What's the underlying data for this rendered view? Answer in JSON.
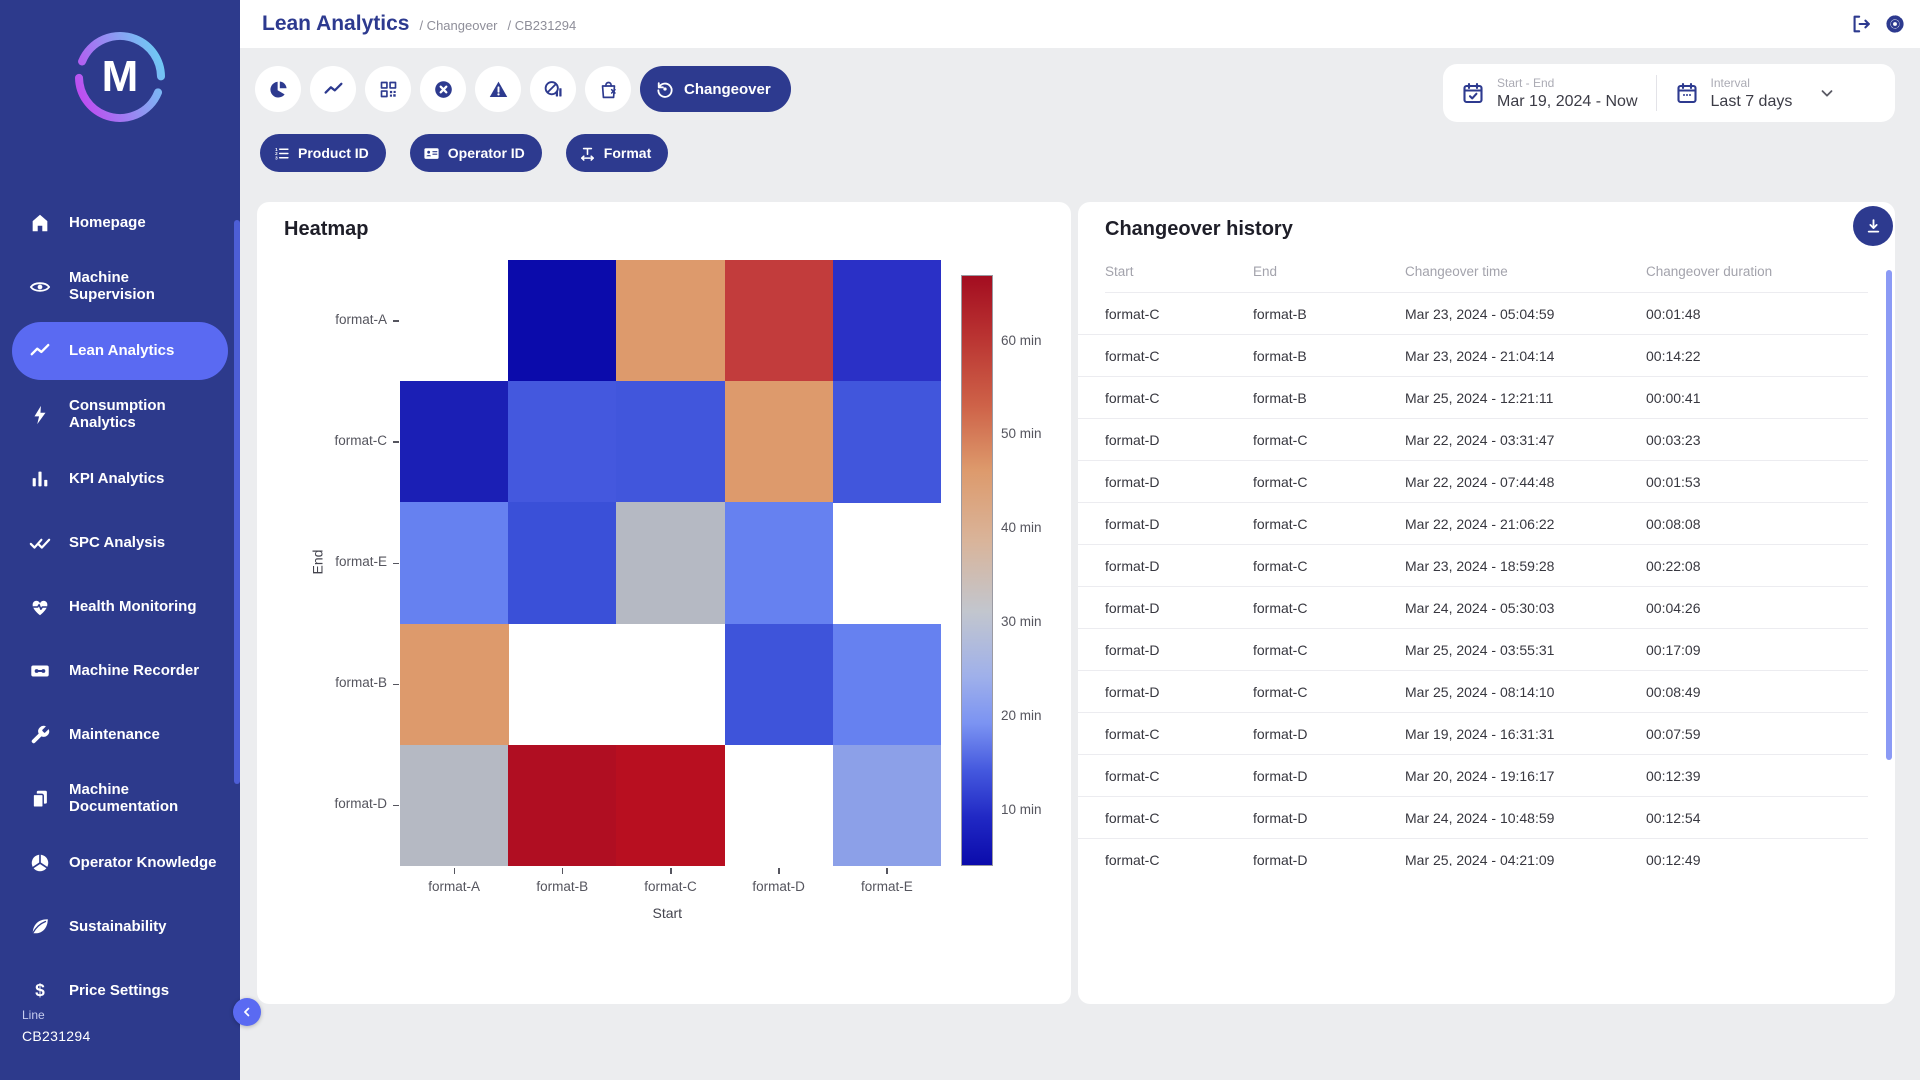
{
  "header": {
    "title": "Lean Analytics",
    "breadcrumbs": [
      "/ Changeover",
      "/ CB231294"
    ],
    "icons": [
      {
        "name": "logout-icon"
      },
      {
        "name": "gear-icon"
      }
    ]
  },
  "sidebar": {
    "logo_letter": "M",
    "logo_gradient": [
      "#64DBF5",
      "#C93BF0"
    ],
    "items": [
      {
        "label": "Homepage",
        "icon": "home-icon",
        "active": false
      },
      {
        "label": "Machine Supervision",
        "icon": "eye-icon",
        "active": false
      },
      {
        "label": "Lean Analytics",
        "icon": "trend-icon",
        "active": true
      },
      {
        "label": "Consumption Analytics",
        "icon": "bolt-icon",
        "active": false
      },
      {
        "label": "KPI Analytics",
        "icon": "bar-chart-icon",
        "active": false
      },
      {
        "label": "SPC Analysis",
        "icon": "double-check-icon",
        "active": false
      },
      {
        "label": "Health Monitoring",
        "icon": "heart-pulse-icon",
        "active": false
      },
      {
        "label": "Machine Recorder",
        "icon": "cassette-icon",
        "active": false
      },
      {
        "label": "Maintenance",
        "icon": "wrench-icon",
        "active": false
      },
      {
        "label": "Machine Documentation",
        "icon": "documents-icon",
        "active": false
      },
      {
        "label": "Operator Knowledge",
        "icon": "segments-icon",
        "active": false
      },
      {
        "label": "Sustainability",
        "icon": "leaf-icon",
        "active": false
      },
      {
        "label": "Price Settings",
        "icon": "dollar-icon",
        "active": false
      }
    ],
    "line_label": "Line",
    "line_value": "CB231294",
    "collapse_icon": "chevron-left-icon"
  },
  "toolbar": {
    "buttons": [
      {
        "name": "pie-chart-button",
        "icon": "pie-chart-icon"
      },
      {
        "name": "trend-button",
        "icon": "trend-icon"
      },
      {
        "name": "qr-code-button",
        "icon": "qr-code-icon"
      },
      {
        "name": "stops-button",
        "icon": "x-circle-icon"
      },
      {
        "name": "alarms-button",
        "icon": "warning-triangle-icon"
      },
      {
        "name": "no-data-button",
        "icon": "no-data-icon"
      },
      {
        "name": "rejects-button",
        "icon": "bag-x-icon"
      }
    ],
    "active_tab": {
      "label": "Changeover",
      "icon": "history-icon"
    }
  },
  "filters": [
    {
      "label": "Product ID",
      "icon": "numbered-list-icon"
    },
    {
      "label": "Operator ID",
      "icon": "id-card-icon"
    },
    {
      "label": "Format",
      "icon": "format-width-icon"
    }
  ],
  "daterange": {
    "start_end_label": "Start - End",
    "start_end_value": "Mar 19, 2024 - Now",
    "start_end_icon": "calendar-check-icon",
    "interval_label": "Interval",
    "interval_value": "Last 7 days",
    "interval_icon": "calendar-icon",
    "chevron_icon": "chevron-down-icon"
  },
  "heatmap_card": {
    "title": "Heatmap"
  },
  "chart_data": {
    "type": "heatmap",
    "title": "Heatmap",
    "xlabel": "Start",
    "ylabel": "End",
    "x_categories": [
      "format-A",
      "format-B",
      "format-C",
      "format-D",
      "format-E"
    ],
    "y_categories": [
      "format-A",
      "format-C",
      "format-E",
      "format-B",
      "format-D"
    ],
    "unit": "min",
    "values_minutes": [
      [
        null,
        5,
        45,
        56,
        9
      ],
      [
        7,
        15,
        15,
        45,
        15
      ],
      [
        21,
        13,
        31,
        21,
        null
      ],
      [
        45,
        null,
        null,
        14,
        21
      ],
      [
        31,
        65,
        65,
        null,
        25
      ]
    ],
    "cell_colors": [
      [
        null,
        "#0B0BAB",
        "#DD9A6C",
        "#C23C3C",
        "#2A30C6"
      ],
      [
        "#1B1FB5",
        "#4458DE",
        "#4156DC",
        "#DD9A6C",
        "#4156DC"
      ],
      [
        "#6681F0",
        "#3A50D8",
        "#B5B9C3",
        "#6681F0",
        null
      ],
      [
        "#DD9A6C",
        null,
        null,
        "#3E54DA",
        "#6681F0"
      ],
      [
        "#B5B9C3",
        "#B00E22",
        "#B80F20",
        null,
        "#8CA0E8"
      ]
    ],
    "colorbar": {
      "vmin": 4,
      "vmax": 67,
      "ticks": [
        {
          "value": 60,
          "label": "60 min"
        },
        {
          "value": 50,
          "label": "50 min"
        },
        {
          "value": 40,
          "label": "40 min"
        },
        {
          "value": 30,
          "label": "30 min"
        },
        {
          "value": 20,
          "label": "20 min"
        },
        {
          "value": 10,
          "label": "10 min"
        }
      ],
      "gradient": [
        [
          "#A30D20",
          0
        ],
        [
          "#B93231",
          10
        ],
        [
          "#CE6248",
          22
        ],
        [
          "#DD9A6C",
          33
        ],
        [
          "#D9B49A",
          45
        ],
        [
          "#C2C6CE",
          57
        ],
        [
          "#9FB0EA",
          68
        ],
        [
          "#7B93F2",
          76
        ],
        [
          "#4458DE",
          84
        ],
        [
          "#2028C4",
          92
        ],
        [
          "#0B0BAB",
          100
        ]
      ]
    }
  },
  "history_card": {
    "title": "Changeover history",
    "download_icon": "download-icon",
    "columns": [
      "Start",
      "End",
      "Changeover time",
      "Changeover duration"
    ],
    "rows": [
      [
        "format-C",
        "format-B",
        "Mar 23, 2024 - 05:04:59",
        "00:01:48"
      ],
      [
        "format-C",
        "format-B",
        "Mar 23, 2024 - 21:04:14",
        "00:14:22"
      ],
      [
        "format-C",
        "format-B",
        "Mar 25, 2024 - 12:21:11",
        "00:00:41"
      ],
      [
        "format-D",
        "format-C",
        "Mar 22, 2024 - 03:31:47",
        "00:03:23"
      ],
      [
        "format-D",
        "format-C",
        "Mar 22, 2024 - 07:44:48",
        "00:01:53"
      ],
      [
        "format-D",
        "format-C",
        "Mar 22, 2024 - 21:06:22",
        "00:08:08"
      ],
      [
        "format-D",
        "format-C",
        "Mar 23, 2024 - 18:59:28",
        "00:22:08"
      ],
      [
        "format-D",
        "format-C",
        "Mar 24, 2024 - 05:30:03",
        "00:04:26"
      ],
      [
        "format-D",
        "format-C",
        "Mar 25, 2024 - 03:55:31",
        "00:17:09"
      ],
      [
        "format-D",
        "format-C",
        "Mar 25, 2024 - 08:14:10",
        "00:08:49"
      ],
      [
        "format-C",
        "format-D",
        "Mar 19, 2024 - 16:31:31",
        "00:07:59"
      ],
      [
        "format-C",
        "format-D",
        "Mar 20, 2024 - 19:16:17",
        "00:12:39"
      ],
      [
        "format-C",
        "format-D",
        "Mar 24, 2024 - 10:48:59",
        "00:12:54"
      ],
      [
        "format-C",
        "format-D",
        "Mar 25, 2024 - 04:21:09",
        "00:12:49"
      ]
    ]
  },
  "colors": {
    "sidebar_bg": "#2D3A8C",
    "active_item_bg": "#5A6AF2",
    "brand_blue": "#2D3A8F",
    "page_bg": "#ECEDEF",
    "scrollbar_thumb": "#8B9AF5",
    "sidebar_scroll_thumb": "#4D5ED6"
  }
}
